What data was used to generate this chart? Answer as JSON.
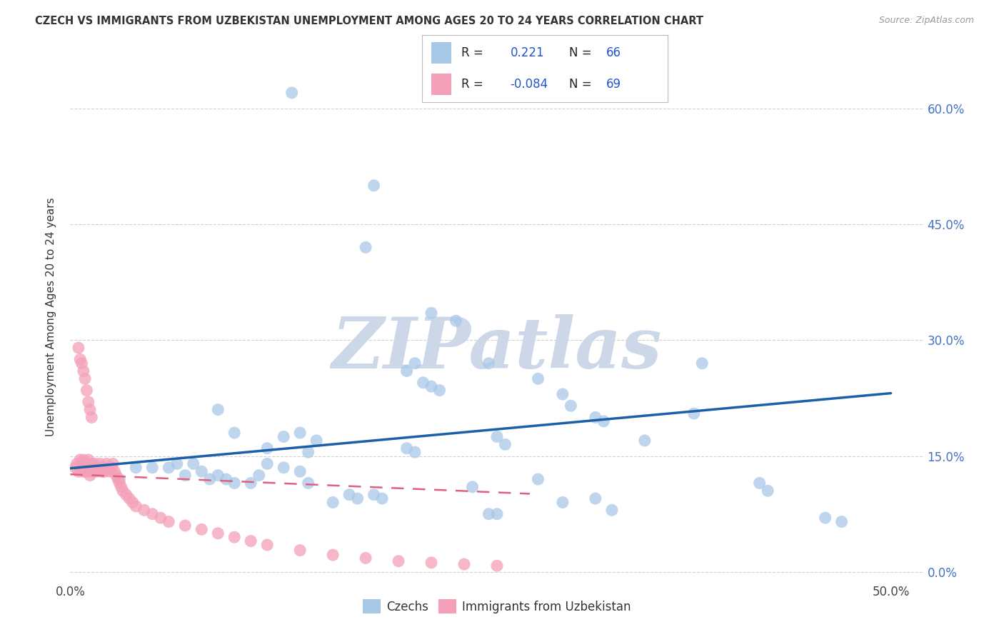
{
  "title": "CZECH VS IMMIGRANTS FROM UZBEKISTAN UNEMPLOYMENT AMONG AGES 20 TO 24 YEARS CORRELATION CHART",
  "source": "Source: ZipAtlas.com",
  "ylabel": "Unemployment Among Ages 20 to 24 years",
  "xlim": [
    0.0,
    0.52
  ],
  "ylim": [
    -0.01,
    0.67
  ],
  "R_czech": 0.221,
  "N_czech": 66,
  "R_uzbek": -0.084,
  "N_uzbek": 69,
  "color_czech": "#a8c8e8",
  "color_uzbek": "#f4a0b8",
  "color_trend_czech": "#1a5fa8",
  "color_trend_uzbek": "#e06080",
  "background_color": "#ffffff",
  "grid_color": "#cccccc",
  "watermark_text": "ZIPatlas",
  "watermark_color": "#ccd8e8",
  "czechs_x": [
    0.135,
    0.185,
    0.18,
    0.22,
    0.235,
    0.21,
    0.205,
    0.215,
    0.22,
    0.225,
    0.255,
    0.285,
    0.26,
    0.265,
    0.3,
    0.305,
    0.32,
    0.325,
    0.35,
    0.38,
    0.42,
    0.425,
    0.46,
    0.47,
    0.09,
    0.1,
    0.12,
    0.13,
    0.14,
    0.145,
    0.15,
    0.015,
    0.02,
    0.03,
    0.04,
    0.05,
    0.06,
    0.065,
    0.07,
    0.075,
    0.08,
    0.085,
    0.09,
    0.095,
    0.1,
    0.11,
    0.115,
    0.12,
    0.13,
    0.14,
    0.145,
    0.16,
    0.17,
    0.175,
    0.185,
    0.19,
    0.205,
    0.21,
    0.255,
    0.26,
    0.3,
    0.32,
    0.33,
    0.245,
    0.285,
    0.385
  ],
  "czechs_y": [
    0.62,
    0.5,
    0.42,
    0.335,
    0.325,
    0.27,
    0.26,
    0.245,
    0.24,
    0.235,
    0.27,
    0.25,
    0.175,
    0.165,
    0.23,
    0.215,
    0.2,
    0.195,
    0.17,
    0.205,
    0.115,
    0.105,
    0.07,
    0.065,
    0.21,
    0.18,
    0.16,
    0.175,
    0.18,
    0.155,
    0.17,
    0.135,
    0.13,
    0.12,
    0.135,
    0.135,
    0.135,
    0.14,
    0.125,
    0.14,
    0.13,
    0.12,
    0.125,
    0.12,
    0.115,
    0.115,
    0.125,
    0.14,
    0.135,
    0.13,
    0.115,
    0.09,
    0.1,
    0.095,
    0.1,
    0.095,
    0.16,
    0.155,
    0.075,
    0.075,
    0.09,
    0.095,
    0.08,
    0.11,
    0.12,
    0.27
  ],
  "uzbeks_x": [
    0.003,
    0.004,
    0.005,
    0.006,
    0.007,
    0.007,
    0.008,
    0.008,
    0.009,
    0.009,
    0.01,
    0.01,
    0.011,
    0.011,
    0.012,
    0.012,
    0.013,
    0.013,
    0.014,
    0.014,
    0.015,
    0.015,
    0.016,
    0.017,
    0.018,
    0.019,
    0.02,
    0.021,
    0.022,
    0.023,
    0.024,
    0.025,
    0.026,
    0.027,
    0.028,
    0.029,
    0.03,
    0.031,
    0.032,
    0.034,
    0.036,
    0.038,
    0.04,
    0.045,
    0.05,
    0.055,
    0.06,
    0.07,
    0.08,
    0.09,
    0.1,
    0.11,
    0.12,
    0.14,
    0.16,
    0.18,
    0.2,
    0.22,
    0.24,
    0.26,
    0.005,
    0.006,
    0.007,
    0.008,
    0.009,
    0.01,
    0.011,
    0.012,
    0.013
  ],
  "uzbeks_y": [
    0.135,
    0.14,
    0.13,
    0.145,
    0.135,
    0.14,
    0.13,
    0.145,
    0.135,
    0.13,
    0.14,
    0.135,
    0.13,
    0.145,
    0.135,
    0.125,
    0.135,
    0.14,
    0.13,
    0.135,
    0.14,
    0.135,
    0.13,
    0.135,
    0.14,
    0.13,
    0.135,
    0.13,
    0.14,
    0.135,
    0.13,
    0.135,
    0.14,
    0.13,
    0.125,
    0.12,
    0.115,
    0.11,
    0.105,
    0.1,
    0.095,
    0.09,
    0.085,
    0.08,
    0.075,
    0.07,
    0.065,
    0.06,
    0.055,
    0.05,
    0.045,
    0.04,
    0.035,
    0.028,
    0.022,
    0.018,
    0.014,
    0.012,
    0.01,
    0.008,
    0.29,
    0.275,
    0.27,
    0.26,
    0.25,
    0.235,
    0.22,
    0.21,
    0.2
  ]
}
